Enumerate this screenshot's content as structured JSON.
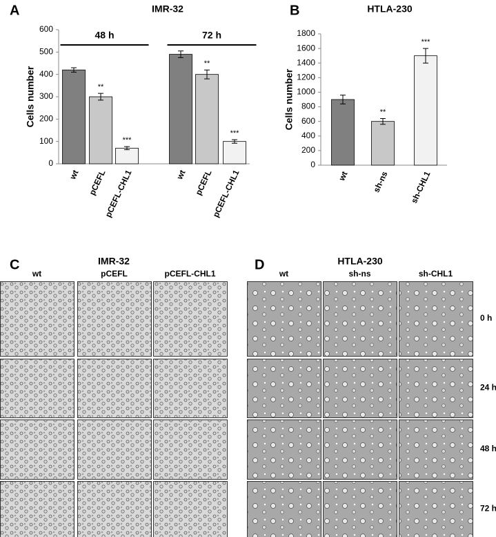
{
  "chart_data": [
    {
      "type": "bar",
      "panel": "A",
      "title": "IMR-32",
      "ylabel": "Cells number",
      "groups": [
        "48 h",
        "72 h"
      ],
      "categories": [
        "wt",
        "pCEFL",
        "pCEFL-CHL1",
        "wt",
        "pCEFL",
        "pCEFL-CHL1"
      ],
      "values": [
        420,
        300,
        70,
        490,
        400,
        100
      ],
      "errors": [
        10,
        15,
        7,
        15,
        20,
        8
      ],
      "annotations": [
        null,
        "**",
        "***",
        null,
        "**",
        "***"
      ],
      "colors": [
        "#808080",
        "#c8c8c8",
        "#f2f2f2",
        "#808080",
        "#c8c8c8",
        "#f2f2f2"
      ],
      "ylim": [
        0,
        600
      ],
      "yticks": [
        0,
        100,
        200,
        300,
        400,
        500,
        600
      ]
    },
    {
      "type": "bar",
      "panel": "B",
      "title": "HTLA-230",
      "ylabel": "Cells number",
      "categories": [
        "wt",
        "sh-ns",
        "sh-CHL1"
      ],
      "values": [
        900,
        600,
        1500
      ],
      "errors": [
        60,
        40,
        100
      ],
      "annotations": [
        null,
        "**",
        "***"
      ],
      "colors": [
        "#808080",
        "#c8c8c8",
        "#f2f2f2"
      ],
      "ylim": [
        0,
        1800
      ],
      "yticks": [
        0,
        200,
        400,
        600,
        800,
        1000,
        1200,
        1400,
        1600,
        1800
      ]
    }
  ],
  "panels": [
    {
      "letter": "C",
      "title": "IMR-32",
      "columns": [
        "wt",
        "pCEFL",
        "pCEFL-CHL1"
      ]
    },
    {
      "letter": "D",
      "title": "HTLA-230",
      "columns": [
        "wt",
        "sh-ns",
        "sh-CHL1"
      ],
      "rows": [
        "0 h",
        "24 h",
        "48 h",
        "72 h"
      ]
    }
  ]
}
